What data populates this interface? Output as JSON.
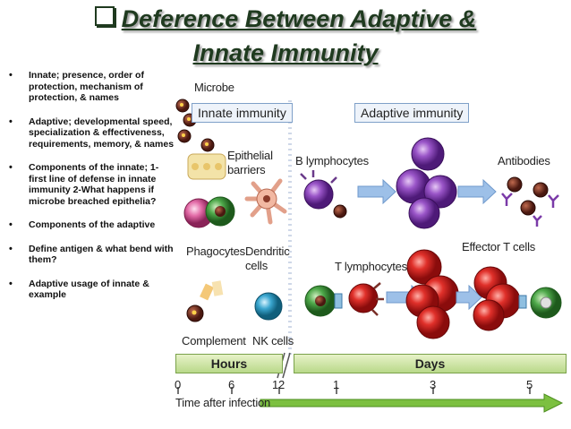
{
  "title": {
    "line1": "Deference Between Adaptive &",
    "line2": "Innate Immunity"
  },
  "bullets": [
    "Innate; presence, order of protection, mechanism of protection, & names",
    "Adaptive; developmental speed, specialization & effectiveness, requirements, memory, & names",
    "Components of the innate; 1- first line of defense in innate immunity 2-What happens if microbe breached epithelia?",
    "Components of the adaptive",
    "Define antigen & what bend with them?",
    "Adaptive usage of innate & example"
  ],
  "figure": {
    "microbe": "Microbe",
    "innate_header": "Innate immunity",
    "adaptive_header": "Adaptive immunity",
    "epithelial": "Epithelial",
    "barriers": "barriers",
    "phagocytes": "Phagocytes",
    "dendritic": "Dendritic",
    "cells": "cells",
    "complement": "Complement",
    "nk_cells": "NK cells",
    "b_lymphocytes": "B lymphocytes",
    "antibodies": "Antibodies",
    "effector_t": "Effector T cells",
    "t_lymphocytes": "T lymphocytes",
    "hours": "Hours",
    "days": "Days",
    "ticks": [
      "0",
      "6",
      "12",
      "1",
      "3",
      "5"
    ],
    "time_label": "Time after infection"
  },
  "colors": {
    "b_cell": "#7a3aa8",
    "t_cell": "#d0201e",
    "phagocyte": "#3f9a3a",
    "nk_cell": "#3aa0c0",
    "microbe": "#6b2a1e",
    "arrow": "#7fa6d8",
    "band": "#b9d98a",
    "time_arrow": "#7cc040"
  }
}
